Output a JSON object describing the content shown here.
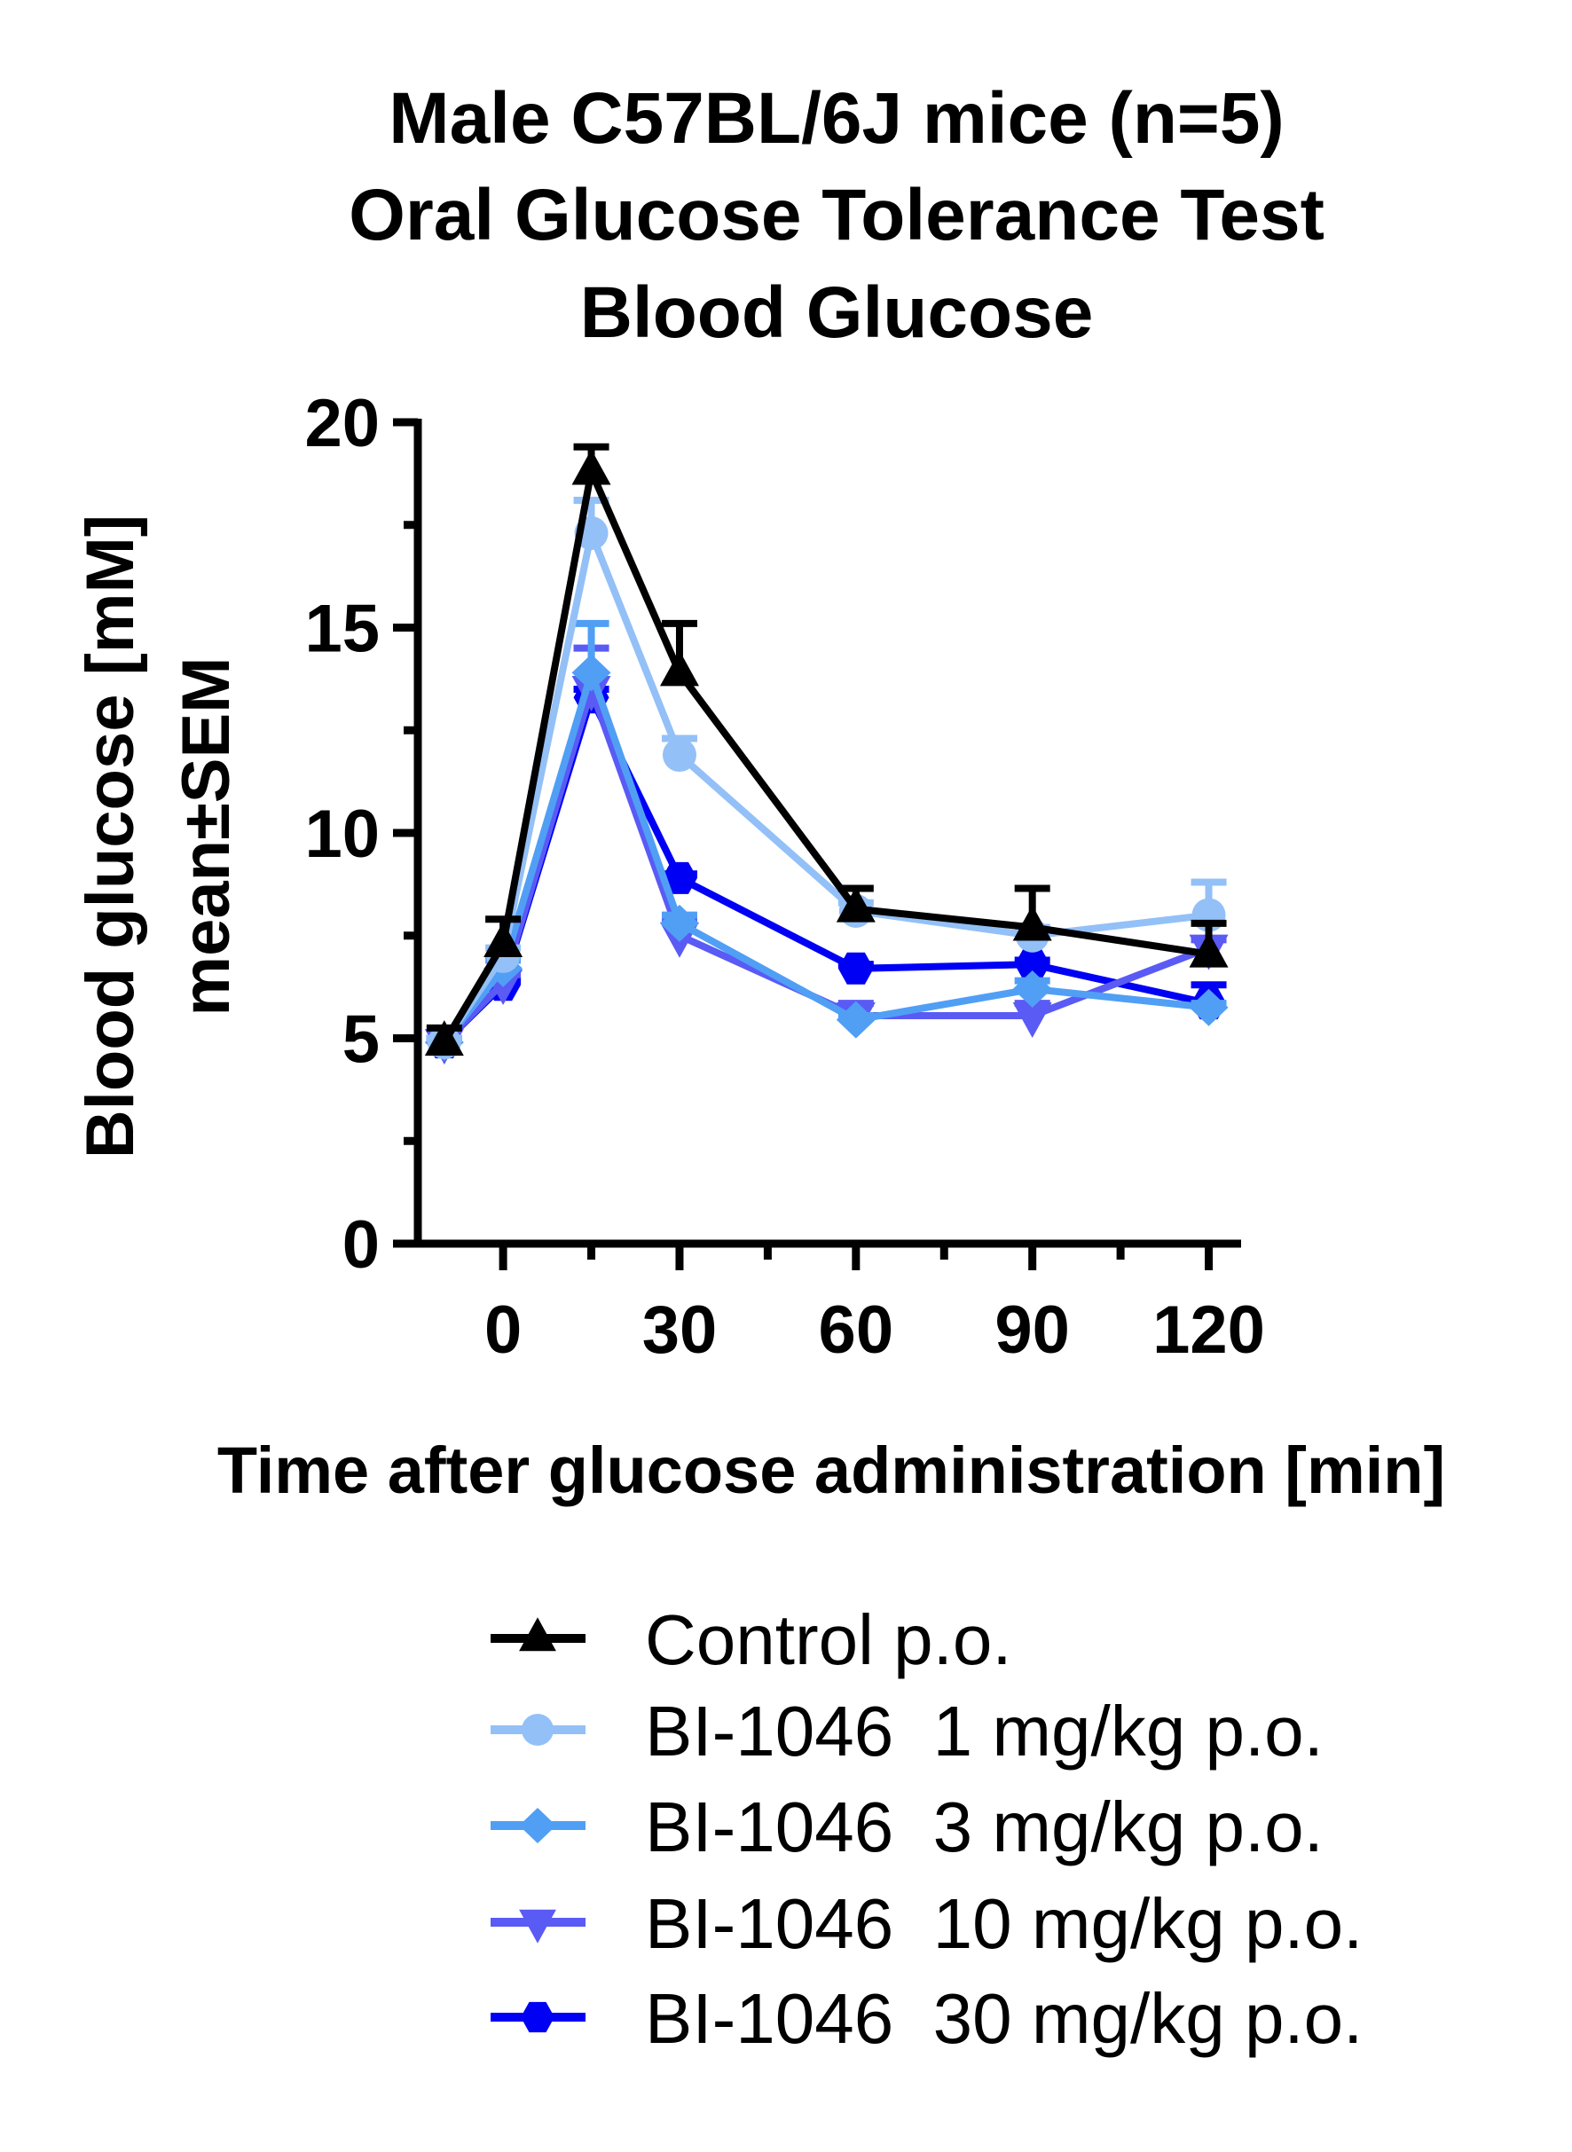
{
  "chart_data": {
    "type": "line",
    "title": [
      "Male C57BL/6J mice (n=5)",
      "Oral  Glucose Tolerance Test",
      "Blood Glucose"
    ],
    "xlabel": "Time after glucose administration [min]",
    "ylabel": [
      "Blood glucose [mM]",
      "mean±SEM"
    ],
    "xlim": [
      -14.5,
      125.5
    ],
    "ylim": [
      0,
      20
    ],
    "xticks": [
      0,
      30,
      60,
      90,
      120
    ],
    "xminor": [
      15,
      45,
      75,
      105
    ],
    "yticks": [
      0,
      5,
      10,
      15,
      20
    ],
    "yminor": [
      2.5,
      7.5,
      12.5,
      17.5
    ],
    "grid": false,
    "legend_position": "bottom",
    "x": [
      -10,
      0,
      15,
      30,
      60,
      90,
      120
    ],
    "series": [
      {
        "name": "Control p.o.",
        "color": "#000000",
        "marker": "triangle-up",
        "values": [
          4.9,
          7.3,
          18.8,
          13.9,
          8.15,
          7.7,
          7.05
        ],
        "sem": [
          0.35,
          0.6,
          0.6,
          1.2,
          0.5,
          0.95,
          0.75
        ]
      },
      {
        "name": "BI-1046  1 mg/kg p.o.",
        "color": "#93c0f7",
        "marker": "circle",
        "values": [
          4.9,
          7.0,
          17.3,
          11.9,
          8.1,
          7.5,
          8.0
        ],
        "sem": [
          0.1,
          0.2,
          0.8,
          0.4,
          0.2,
          0.2,
          0.8
        ]
      },
      {
        "name": "BI-1046  3 mg/kg p.o.",
        "color": "#509ff5",
        "marker": "diamond",
        "values": [
          4.9,
          6.7,
          13.9,
          7.8,
          5.45,
          6.2,
          5.75
        ],
        "sem": [
          0.1,
          0.2,
          1.2,
          0.2,
          0.1,
          0.2,
          0.1
        ]
      },
      {
        "name": "BI-1046  10 mg/kg p.o.",
        "color": "#5a5af5",
        "marker": "triangle-down",
        "values": [
          4.9,
          6.35,
          13.5,
          7.5,
          5.55,
          5.55,
          7.2
        ],
        "sem": [
          0.1,
          0.2,
          1.0,
          0.4,
          0.3,
          0.3,
          0.2
        ]
      },
      {
        "name": "BI-1046  30 mg/kg p.o.",
        "color": "#0000f5",
        "marker": "hexagon",
        "values": [
          4.9,
          6.3,
          13.3,
          8.9,
          6.7,
          6.8,
          5.85
        ],
        "sem": [
          0.1,
          0.1,
          0.2,
          0.1,
          0.1,
          0.1,
          0.45
        ]
      }
    ]
  }
}
